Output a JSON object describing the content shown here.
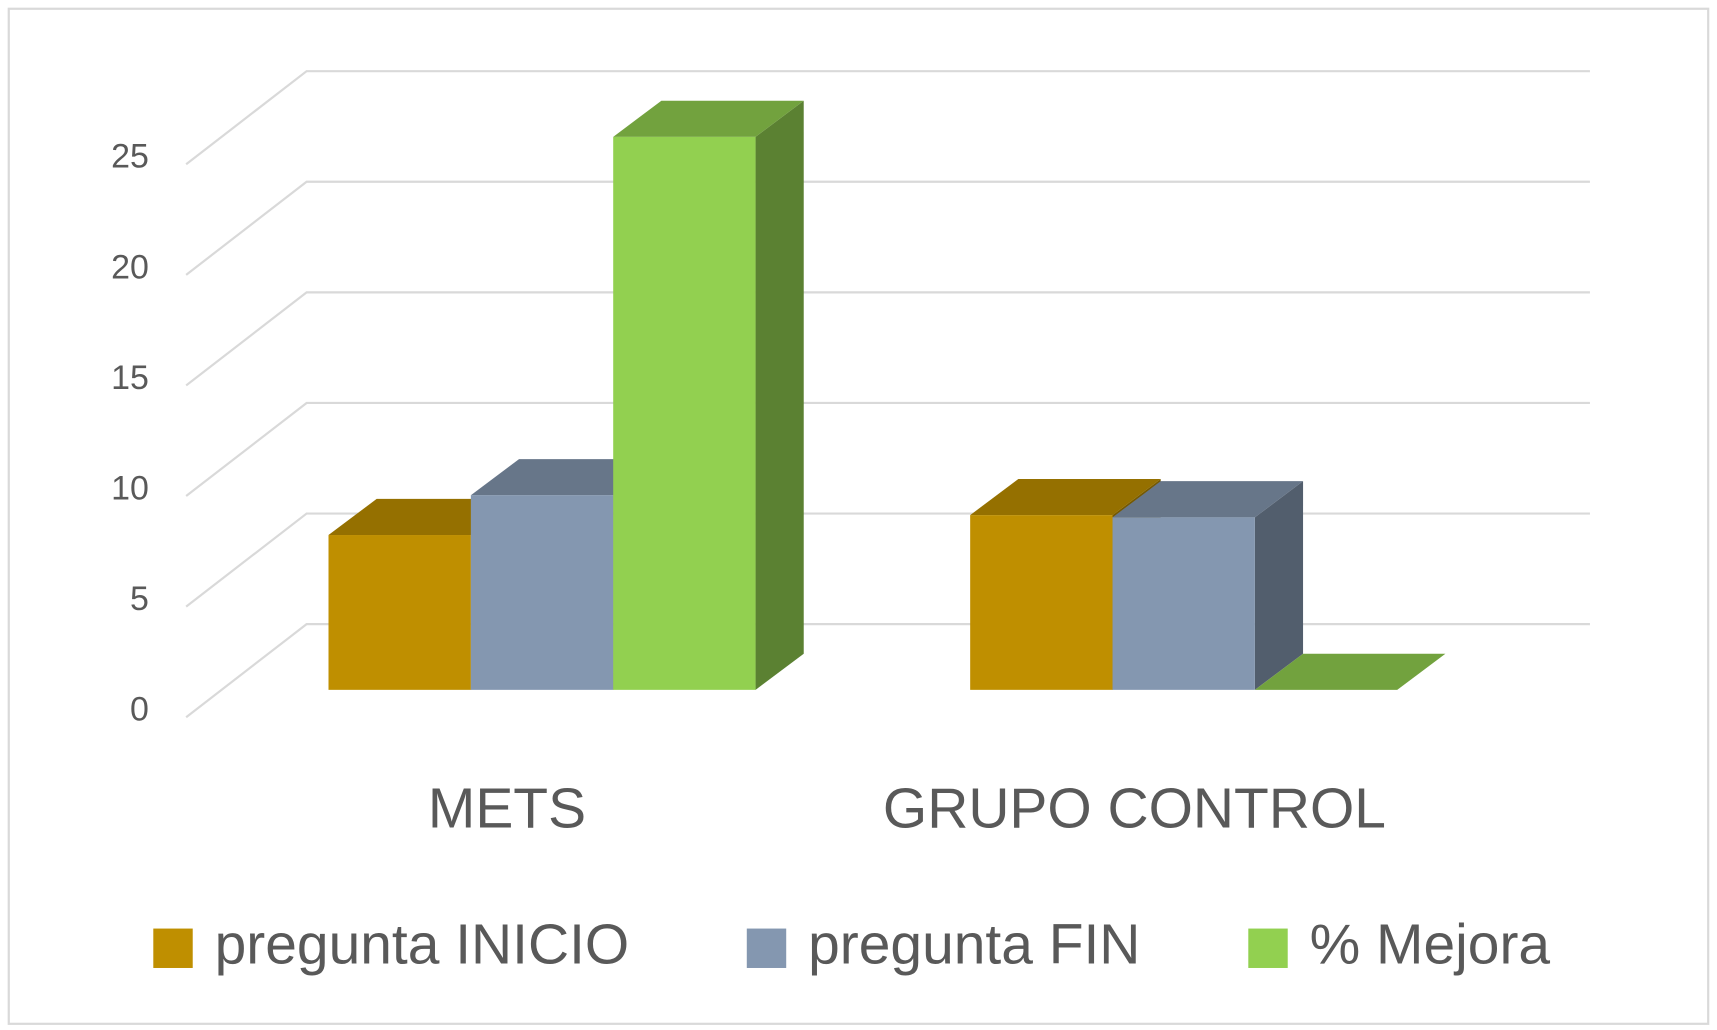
{
  "chart_data": {
    "type": "bar",
    "three_d": true,
    "categories": [
      "METS",
      "GRUPO CONTROL"
    ],
    "series": [
      {
        "name": "pregunta INICIO",
        "color": "#bf8f00",
        "values": [
          7,
          7.9
        ]
      },
      {
        "name": "pregunta FIN",
        "color": "#8497b0",
        "values": [
          8.8,
          7.8
        ]
      },
      {
        "name": "% Mejora",
        "color": "#92d050",
        "values": [
          25,
          0
        ]
      }
    ],
    "ylim": [
      0,
      25
    ],
    "yticks": [
      0,
      5,
      10,
      15,
      20,
      25
    ],
    "grid": true,
    "legend": "bottom"
  }
}
